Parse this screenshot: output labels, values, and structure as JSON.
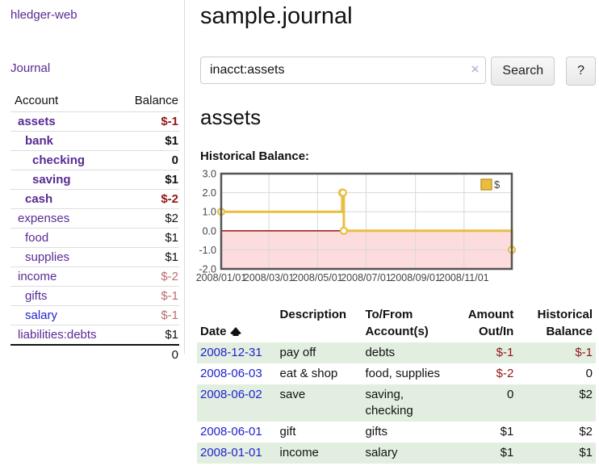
{
  "app_title": "hledger-web",
  "sidebar": {
    "journal_link": "Journal",
    "accounts": {
      "header": {
        "account": "Account",
        "balance": "Balance"
      },
      "rows": [
        {
          "name": "assets",
          "balance": "$-1",
          "depth": 0,
          "bold": true
        },
        {
          "name": "bank",
          "balance": "$1",
          "depth": 1,
          "bold": true
        },
        {
          "name": "checking",
          "balance": "0",
          "depth": 2,
          "bold": true
        },
        {
          "name": "saving",
          "balance": "$1",
          "depth": 2,
          "bold": true
        },
        {
          "name": "cash",
          "balance": "$-2",
          "depth": 1,
          "bold": true
        },
        {
          "name": "expenses",
          "balance": "$2",
          "depth": 0,
          "bold": false
        },
        {
          "name": "food",
          "balance": "$1",
          "depth": 1,
          "bold": false
        },
        {
          "name": "supplies",
          "balance": "$1",
          "depth": 1,
          "bold": false
        },
        {
          "name": "income",
          "balance": "$-2",
          "depth": 0,
          "bold": false
        },
        {
          "name": "gifts",
          "balance": "$-1",
          "depth": 1,
          "bold": false
        },
        {
          "name": "salary",
          "balance": "$-1",
          "depth": 1,
          "bold": false,
          "fresh": true
        },
        {
          "name": "liabilities:debts",
          "balance": "$1",
          "depth": 0,
          "bold": false
        }
      ],
      "total": "0"
    }
  },
  "main": {
    "title": "sample.journal",
    "search": {
      "value": "inacct:assets",
      "clear_icon": "×",
      "search_button": "Search",
      "help_button": "?"
    },
    "account_title": "assets",
    "section_label": "Historical Balance:"
  },
  "chart_data": {
    "type": "line",
    "step": true,
    "title": "Historical Balance:",
    "series": [
      {
        "name": "$",
        "color": "#e9be40",
        "points": [
          [
            "2008-01-01",
            1
          ],
          [
            "2008-06-01",
            2
          ],
          [
            "2008-06-02",
            2
          ],
          [
            "2008-06-03",
            0
          ],
          [
            "2008-12-31",
            -1
          ]
        ]
      }
    ],
    "x_ticks": [
      "2008/01/01",
      "2008/03/01",
      "2008/05/01",
      "2008/07/01",
      "2008/09/01",
      "2008/11/01"
    ],
    "y_ticks": [
      3.0,
      2.0,
      1.0,
      0.0,
      -1.0,
      -2.0
    ],
    "xlim": [
      "2008-01-01",
      "2008-12-31"
    ],
    "ylim": [
      -2,
      3
    ],
    "grid": true,
    "legend": {
      "label": "$",
      "position": "top-right"
    },
    "negative_region_color": "#fcdcdc",
    "zero_line_color": "#910000",
    "border_color": "#545454"
  },
  "register": {
    "headers": {
      "date": "Date",
      "description": "Description",
      "accounts": "To/From\nAccount(s)",
      "amount": "Amount\nOut/In",
      "balance": "Historical\nBalance"
    },
    "rows": [
      {
        "date": "2008-12-31",
        "description": "pay off",
        "accounts": "debts",
        "amount": "$-1",
        "balance": "$-1"
      },
      {
        "date": "2008-06-03",
        "description": "eat & shop",
        "accounts": "food, supplies",
        "amount": "$-2",
        "balance": "0"
      },
      {
        "date": "2008-06-02",
        "description": "save",
        "accounts": "saving, checking",
        "amount": "0",
        "balance": "$2"
      },
      {
        "date": "2008-06-01",
        "description": "gift",
        "accounts": "gifts",
        "amount": "$1",
        "balance": "$2"
      },
      {
        "date": "2008-01-01",
        "description": "income",
        "accounts": "salary",
        "amount": "$1",
        "balance": "$1"
      }
    ]
  }
}
